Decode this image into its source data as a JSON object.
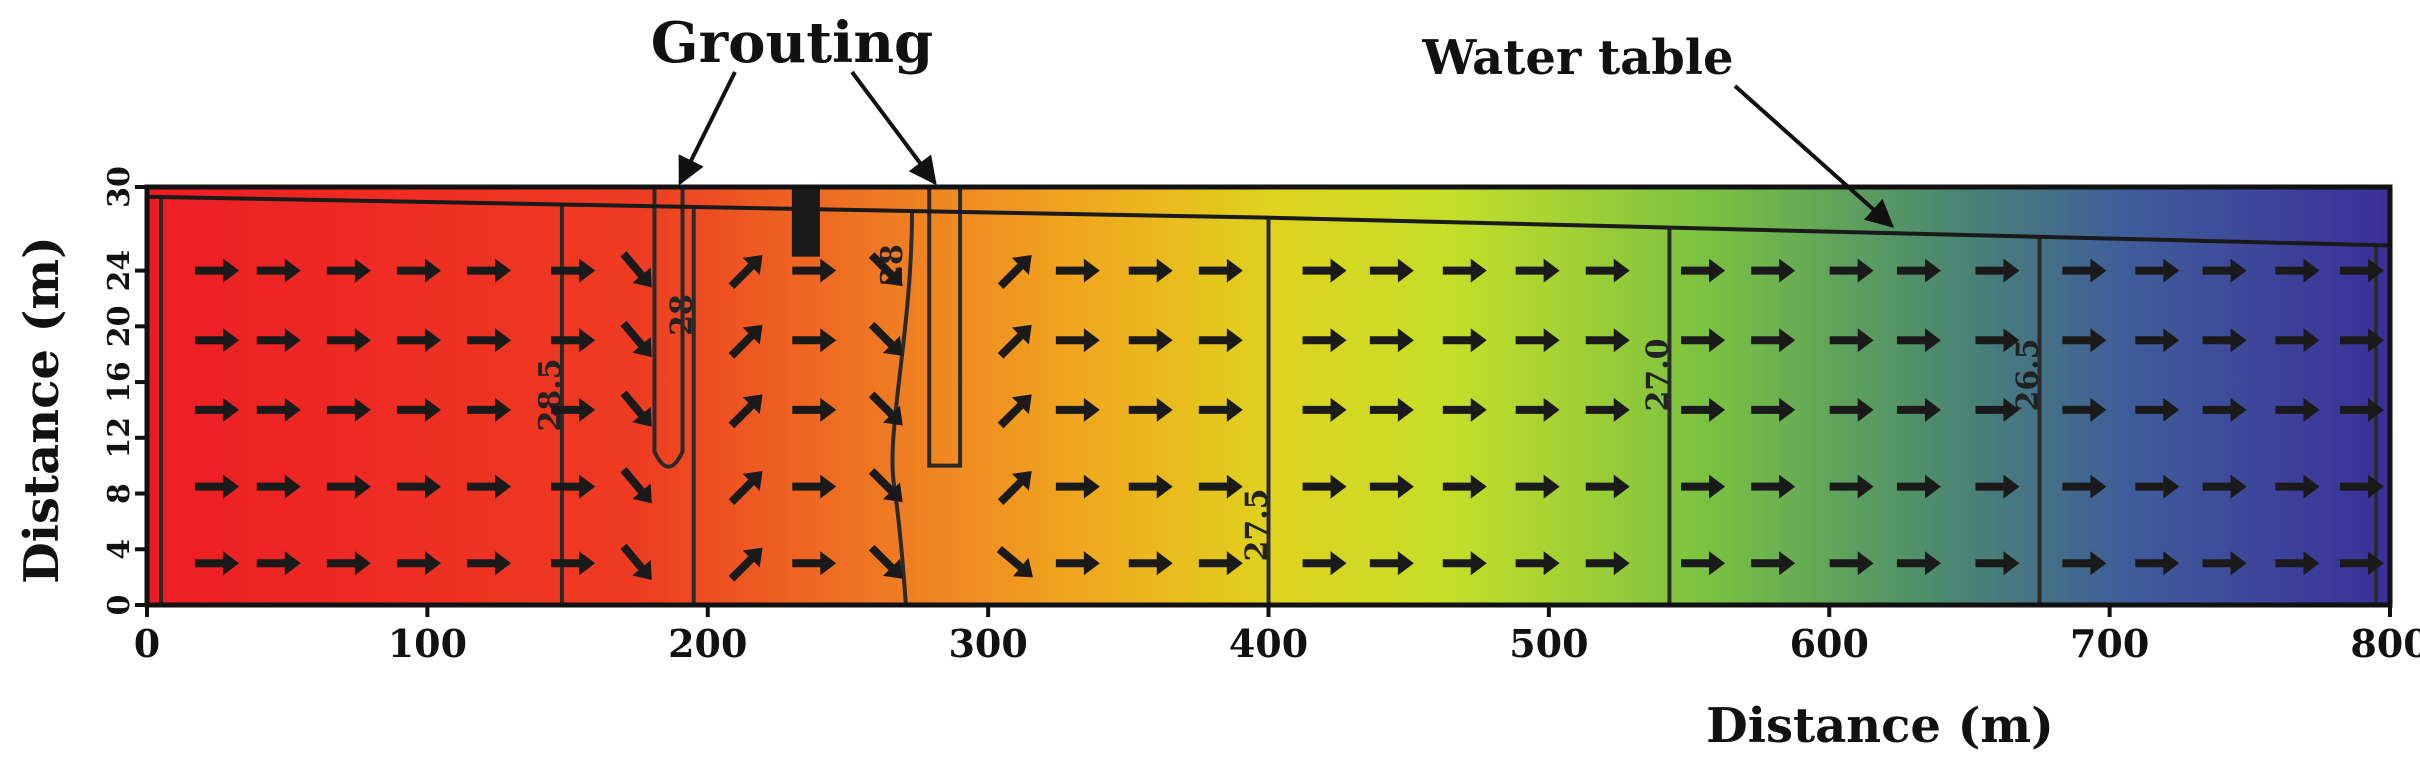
{
  "chart_data": {
    "type": "heatmap",
    "title": "",
    "xlabel": "Distance (m)",
    "ylabel": "Distance (m)",
    "xlim": [
      0,
      800
    ],
    "ylim": [
      0,
      30
    ],
    "x_ticks": [
      "0",
      "100",
      "200",
      "300",
      "400",
      "500",
      "600",
      "700",
      "800"
    ],
    "y_ticks": [
      "0",
      "4",
      "8",
      "12",
      "16",
      "20",
      "24",
      "30"
    ],
    "x_tick_values": [
      0,
      100,
      200,
      300,
      400,
      500,
      600,
      700,
      800
    ],
    "y_tick_values": [
      0,
      4,
      8,
      12,
      16,
      20,
      24,
      30
    ],
    "grid": false,
    "colormap": [
      "#ed1c24",
      "#ee3d22",
      "#ef7a23",
      "#f0a91e",
      "#e0d21e",
      "#c5df28",
      "#78c043",
      "#4b8a6f",
      "#3f5e9a",
      "#3b2f9a"
    ],
    "water_table": [
      [
        0,
        29.3
      ],
      [
        400,
        27.8
      ],
      [
        800,
        25.8
      ]
    ],
    "contours": [
      {
        "label": "28.5",
        "x": 148
      },
      {
        "label": "28",
        "x": 195
      },
      {
        "label": "28",
        "x": 270
      },
      {
        "label": "27.5",
        "x": 400
      },
      {
        "label": "27.0",
        "x": 543
      },
      {
        "label": "26.5",
        "x": 675
      }
    ],
    "grout_curtains": [
      {
        "x_left": 181,
        "x_right": 191,
        "bottom": 10
      },
      {
        "x_left": 279,
        "x_right": 290,
        "bottom": 10
      }
    ],
    "structure": {
      "x_left": 230,
      "x_right": 240,
      "y_bottom": 25
    },
    "flow_rows": [
      3,
      8.5,
      14,
      19,
      24
    ],
    "flow_columns": [
      25,
      47,
      72,
      97,
      122,
      152,
      175,
      214,
      238,
      264,
      310,
      332,
      358,
      383,
      420,
      444,
      470,
      496,
      521,
      555,
      580,
      608,
      632,
      660,
      691,
      717,
      741,
      767,
      790
    ],
    "annotations": {
      "grouting": "Grouting",
      "water_table": "Water table"
    }
  }
}
